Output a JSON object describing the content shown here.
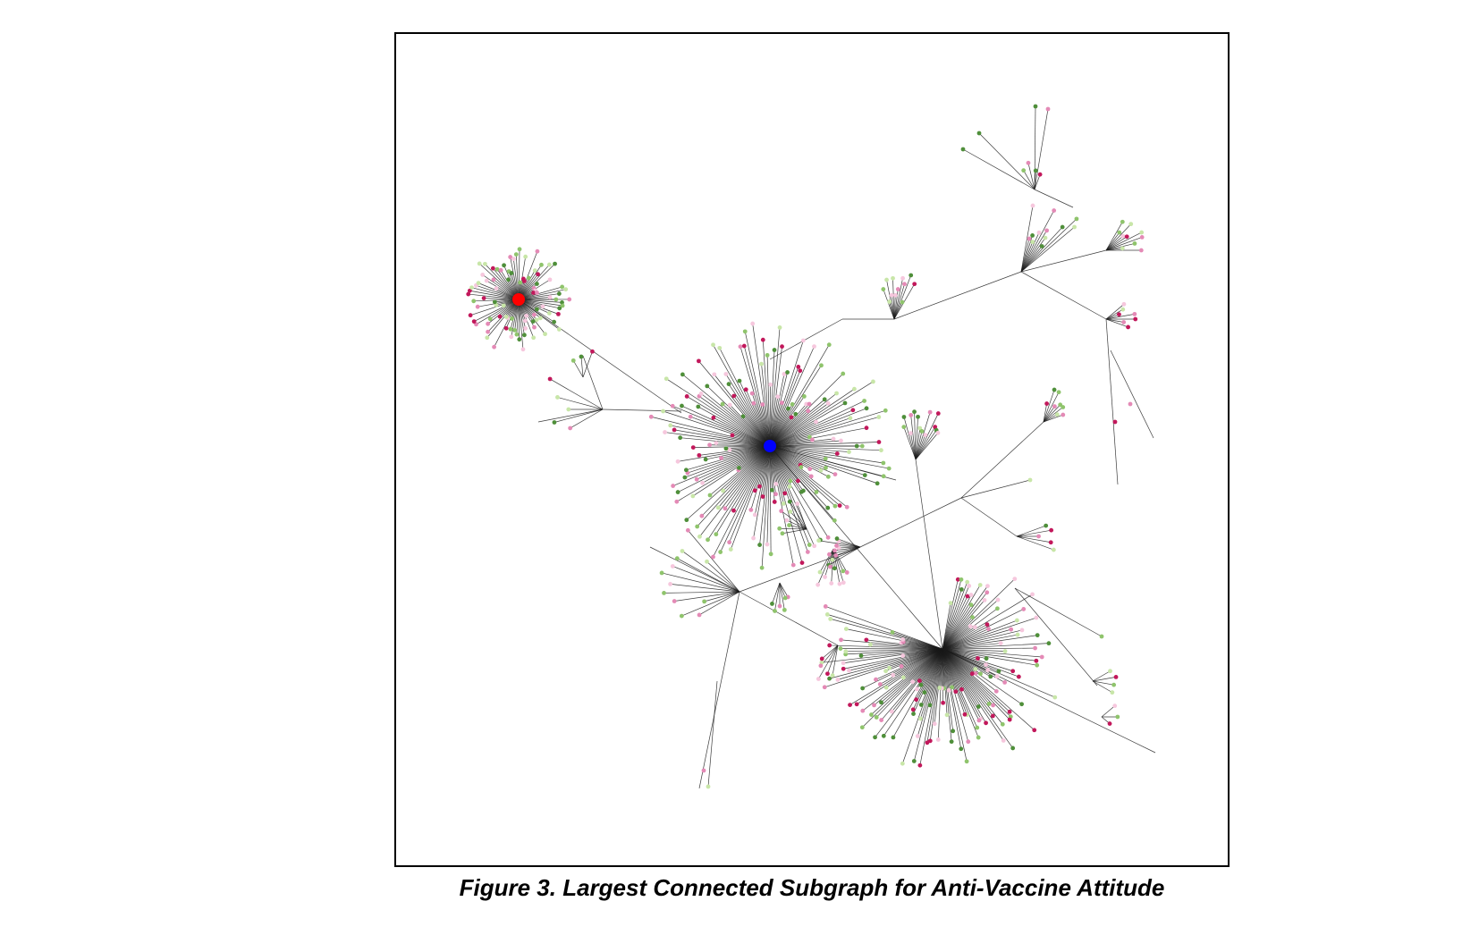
{
  "caption": "Figure 3. Largest Connected Subgraph for Anti-Vaccine Attitude",
  "colors": {
    "edge": "#1a1a1a",
    "hub_red": "#ff0000",
    "hub_blue": "#0000ff",
    "leaf_palette": [
      "#c2185b",
      "#e48ab6",
      "#f6c7dd",
      "#4f8f3a",
      "#8fc46c",
      "#c8e6a8"
    ]
  }
}
